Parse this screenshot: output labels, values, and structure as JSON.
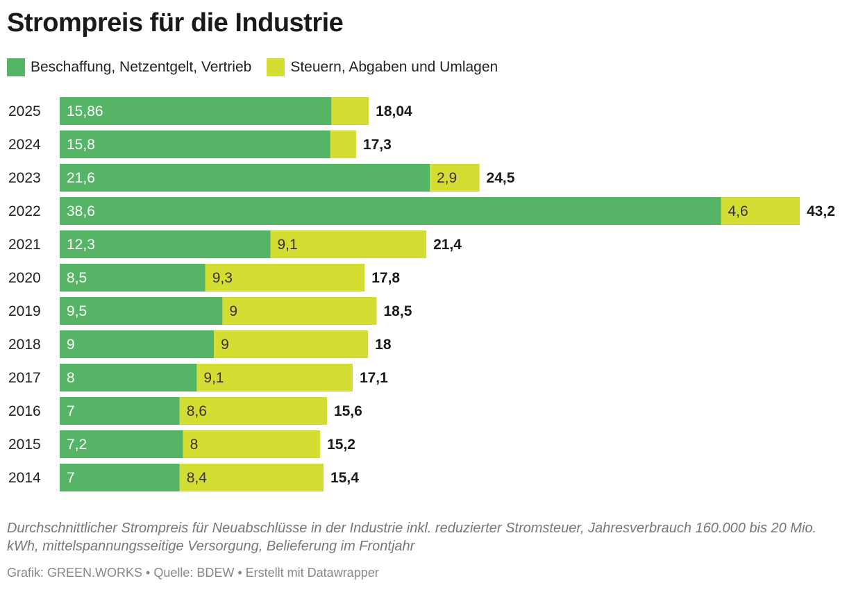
{
  "chart_data": {
    "type": "bar",
    "orientation": "horizontal",
    "stacked": true,
    "title": "Strompreis für die Industrie",
    "categories": [
      "2025",
      "2024",
      "2023",
      "2022",
      "2021",
      "2020",
      "2019",
      "2018",
      "2017",
      "2016",
      "2015",
      "2014"
    ],
    "series": [
      {
        "name": "Beschaffung, Netzentgelt, Vertrieb",
        "color": "#55b466",
        "values": [
          15.86,
          15.8,
          21.6,
          38.6,
          12.3,
          8.5,
          9.5,
          9,
          8,
          7,
          7.2,
          7
        ],
        "labels": [
          "15,86",
          "15,8",
          "21,6",
          "38,6",
          "12,3",
          "8,5",
          "9,5",
          "9",
          "8",
          "7",
          "7,2",
          "7"
        ]
      },
      {
        "name": "Steuern, Abgaben und Umlagen",
        "color": "#d4dd31",
        "values": [
          2.18,
          1.5,
          2.9,
          4.6,
          9.1,
          9.3,
          9,
          9,
          9.1,
          8.6,
          8,
          8.4
        ],
        "labels": [
          "",
          "",
          "2,9",
          "4,6",
          "9,1",
          "9,3",
          "9",
          "9",
          "9,1",
          "8,6",
          "8",
          "8,4"
        ]
      }
    ],
    "totals": [
      "18,04",
      "17,3",
      "24,5",
      "43,2",
      "21,4",
      "17,8",
      "18,5",
      "18",
      "17,1",
      "15,6",
      "15,2",
      "15,4"
    ],
    "total_values": [
      18.04,
      17.3,
      24.5,
      43.2,
      21.4,
      17.8,
      18.5,
      18,
      17.1,
      15.6,
      15.2,
      15.4
    ],
    "xlim": [
      0,
      43.2
    ],
    "grid": false,
    "legend_placement": "top-left"
  },
  "note": "Durchschnittlicher Strompreis für Neuabschlüsse in der Industrie inkl. reduzierter Stromsteuer, Jahresverbrauch 160.000 bis 20 Mio. kWh, mittelspannungsseitige Versorgung, Belieferung im Frontjahr",
  "footer": "Grafik: GREEN.WORKS • Quelle: BDEW • Erstellt mit Datawrapper"
}
